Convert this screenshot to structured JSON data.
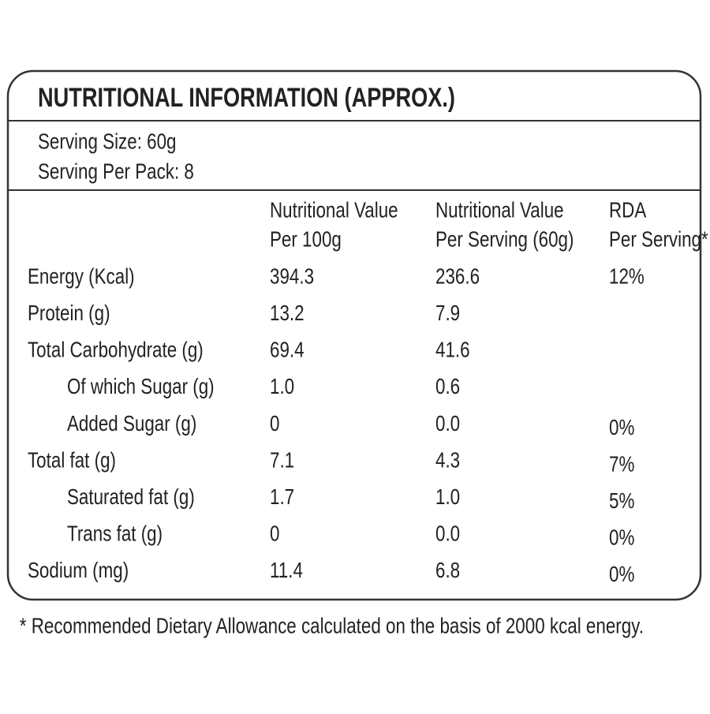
{
  "title": "NUTRITIONAL INFORMATION (APPROX.)",
  "serving": [
    "Serving Size: 60g",
    "Serving Per Pack: 8"
  ],
  "table": {
    "headers": [
      [
        "Nutritional Value",
        "Per 100g"
      ],
      [
        "Nutritional Value",
        "Per Serving (60g)"
      ],
      [
        "RDA",
        "Per Serving*"
      ]
    ],
    "rows": [
      {
        "label": "Energy (Kcal)",
        "level": 0,
        "per100": "394.3",
        "perServing": "236.6",
        "rda": "12%"
      },
      {
        "label": "Protein (g)",
        "level": 0,
        "per100": "13.2",
        "perServing": "7.9"
      },
      {
        "label": "Total Carbohydrate (g)",
        "level": 0,
        "per100": "69.4",
        "perServing": "41.6"
      },
      {
        "label": "Of which Sugar (g)",
        "level": 1,
        "per100": "1.0",
        "perServing": "0.6"
      },
      {
        "label": "Added Sugar (g)",
        "level": 1,
        "per100": "0",
        "perServing": "0.0",
        "rda": "0%"
      },
      {
        "label": "Total fat (g)",
        "level": 0,
        "per100": "7.1",
        "perServing": "4.3",
        "rda": "7%"
      },
      {
        "label": "Saturated fat (g)",
        "level": 1,
        "per100": "1.7",
        "perServing": "1.0",
        "rda": "5%"
      },
      {
        "label": "Trans fat (g)",
        "level": 1,
        "per100": "0",
        "perServing": "0.0",
        "rda": "0%"
      },
      {
        "label": "Sodium (mg)",
        "level": 0,
        "per100": "11.4",
        "perServing": "6.8",
        "rda": "0%"
      }
    ]
  },
  "footnote": "* Recommended Dietary Allowance calculated on the basis of 2000 kcal energy."
}
